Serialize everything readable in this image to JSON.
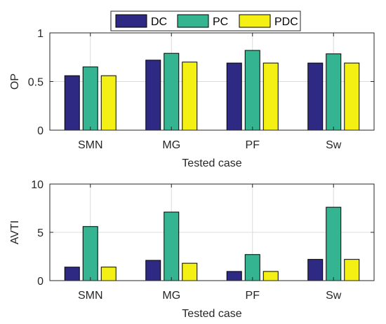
{
  "legend": {
    "placement": "top-center",
    "entries": [
      {
        "name": "DC",
        "color": "#2e2a83"
      },
      {
        "name": "PC",
        "color": "#34b491"
      },
      {
        "name": "PDC",
        "color": "#f5f013"
      }
    ]
  },
  "chart_data": [
    {
      "type": "bar",
      "categories": [
        "SMN",
        "MG",
        "PF",
        "Sw"
      ],
      "series": [
        {
          "name": "DC",
          "values": [
            0.56,
            0.72,
            0.69,
            0.69
          ]
        },
        {
          "name": "PC",
          "values": [
            0.65,
            0.79,
            0.82,
            0.785
          ]
        },
        {
          "name": "PDC",
          "values": [
            0.56,
            0.7,
            0.69,
            0.69
          ]
        }
      ],
      "xlabel": "Tested case",
      "ylabel": "OP",
      "ylim": [
        0,
        1
      ],
      "yticks": [
        0,
        0.5,
        1
      ],
      "ytick_labels": [
        "0",
        "0.5",
        "1"
      ],
      "grid": true
    },
    {
      "type": "bar",
      "categories": [
        "SMN",
        "MG",
        "PF",
        "Sw"
      ],
      "series": [
        {
          "name": "DC",
          "values": [
            1.4,
            2.1,
            0.95,
            2.2
          ]
        },
        {
          "name": "PC",
          "values": [
            5.6,
            7.1,
            2.7,
            7.6
          ]
        },
        {
          "name": "PDC",
          "values": [
            1.4,
            1.8,
            0.95,
            2.2
          ]
        }
      ],
      "xlabel": "Tested case",
      "ylabel": "AVTI",
      "ylim": [
        0,
        10
      ],
      "yticks": [
        0,
        5,
        10
      ],
      "ytick_labels": [
        "0",
        "5",
        "10"
      ],
      "grid": true
    }
  ]
}
